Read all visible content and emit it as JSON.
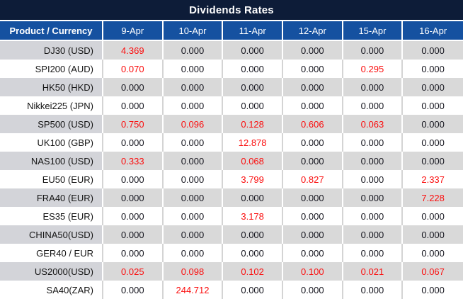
{
  "chart_data": {
    "type": "table",
    "title": "Dividends Rates",
    "columns": [
      "Product / Currency",
      "9-Apr",
      "10-Apr",
      "11-Apr",
      "12-Apr",
      "15-Apr",
      "16-Apr"
    ],
    "rows": [
      {
        "label": "DJ30 (USD)",
        "values": [
          "4.369",
          "0.000",
          "0.000",
          "0.000",
          "0.000",
          "0.000"
        ],
        "red": [
          true,
          false,
          false,
          false,
          false,
          false
        ]
      },
      {
        "label": "SPI200 (AUD)",
        "values": [
          "0.070",
          "0.000",
          "0.000",
          "0.000",
          "0.295",
          "0.000"
        ],
        "red": [
          true,
          false,
          false,
          false,
          true,
          false
        ]
      },
      {
        "label": "HK50 (HKD)",
        "values": [
          "0.000",
          "0.000",
          "0.000",
          "0.000",
          "0.000",
          "0.000"
        ],
        "red": [
          false,
          false,
          false,
          false,
          false,
          false
        ]
      },
      {
        "label": "Nikkei225 (JPN)",
        "values": [
          "0.000",
          "0.000",
          "0.000",
          "0.000",
          "0.000",
          "0.000"
        ],
        "red": [
          false,
          false,
          false,
          false,
          false,
          false
        ]
      },
      {
        "label": "SP500 (USD)",
        "values": [
          "0.750",
          "0.096",
          "0.128",
          "0.606",
          "0.063",
          "0.000"
        ],
        "red": [
          true,
          true,
          true,
          true,
          true,
          false
        ]
      },
      {
        "label": "UK100 (GBP)",
        "values": [
          "0.000",
          "0.000",
          "12.878",
          "0.000",
          "0.000",
          "0.000"
        ],
        "red": [
          false,
          false,
          true,
          false,
          false,
          false
        ]
      },
      {
        "label": "NAS100 (USD)",
        "values": [
          "0.333",
          "0.000",
          "0.068",
          "0.000",
          "0.000",
          "0.000"
        ],
        "red": [
          true,
          false,
          true,
          false,
          false,
          false
        ]
      },
      {
        "label": "EU50 (EUR)",
        "values": [
          "0.000",
          "0.000",
          "3.799",
          "0.827",
          "0.000",
          "2.337"
        ],
        "red": [
          false,
          false,
          true,
          true,
          false,
          true
        ]
      },
      {
        "label": "FRA40 (EUR)",
        "values": [
          "0.000",
          "0.000",
          "0.000",
          "0.000",
          "0.000",
          "7.228"
        ],
        "red": [
          false,
          false,
          false,
          false,
          false,
          true
        ]
      },
      {
        "label": "ES35 (EUR)",
        "values": [
          "0.000",
          "0.000",
          "3.178",
          "0.000",
          "0.000",
          "0.000"
        ],
        "red": [
          false,
          false,
          true,
          false,
          false,
          false
        ]
      },
      {
        "label": "CHINA50(USD)",
        "values": [
          "0.000",
          "0.000",
          "0.000",
          "0.000",
          "0.000",
          "0.000"
        ],
        "red": [
          false,
          false,
          false,
          false,
          false,
          false
        ]
      },
      {
        "label": "GER40 / EUR",
        "values": [
          "0.000",
          "0.000",
          "0.000",
          "0.000",
          "0.000",
          "0.000"
        ],
        "red": [
          false,
          false,
          false,
          false,
          false,
          false
        ]
      },
      {
        "label": "US2000(USD)",
        "values": [
          "0.025",
          "0.098",
          "0.102",
          "0.100",
          "0.021",
          "0.067"
        ],
        "red": [
          true,
          true,
          true,
          true,
          true,
          true
        ]
      },
      {
        "label": "SA40(ZAR)",
        "values": [
          "0.000",
          "244.712",
          "0.000",
          "0.000",
          "0.000",
          "0.000"
        ],
        "red": [
          false,
          true,
          false,
          false,
          false,
          false
        ]
      }
    ]
  },
  "colors": {
    "title_bg": "#0d1c38",
    "header_bg": "#1551a0",
    "stripe_row_bg": "#d9d9d9",
    "stripe_label_bg": "#d3d4d9",
    "red_value": "#fb0e0e",
    "value_text": "#15151e",
    "header_text": "#ffffff"
  }
}
